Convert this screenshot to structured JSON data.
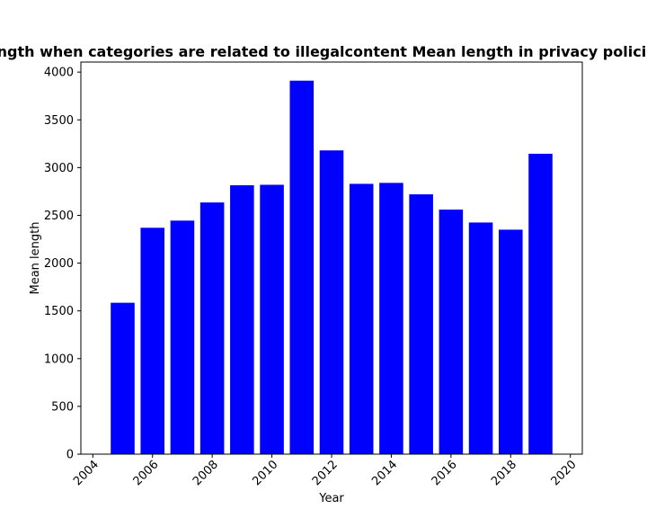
{
  "chart_data": {
    "type": "bar",
    "title": "Mean length when categories are related to illegalcontent Mean length in privacy policies by Year",
    "xlabel": "Year",
    "ylabel": "Mean length",
    "x": [
      2005,
      2006,
      2007,
      2008,
      2009,
      2010,
      2011,
      2012,
      2013,
      2014,
      2015,
      2016,
      2017,
      2018,
      2019
    ],
    "values": [
      1585,
      2370,
      2445,
      2635,
      2815,
      2820,
      3910,
      3180,
      2830,
      2840,
      2720,
      2560,
      2425,
      2350,
      3145
    ],
    "xlim": [
      2003.6,
      2020.4
    ],
    "ylim": [
      0,
      4105
    ],
    "xticks": [
      "2004",
      "2006",
      "2008",
      "2010",
      "2012",
      "2014",
      "2016",
      "2018",
      "2020"
    ],
    "yticks": [
      "0",
      "500",
      "1000",
      "1500",
      "2000",
      "2500",
      "3000",
      "3500",
      "4000"
    ],
    "bar_color": "#0000ff",
    "grid": false,
    "legend": "none"
  }
}
